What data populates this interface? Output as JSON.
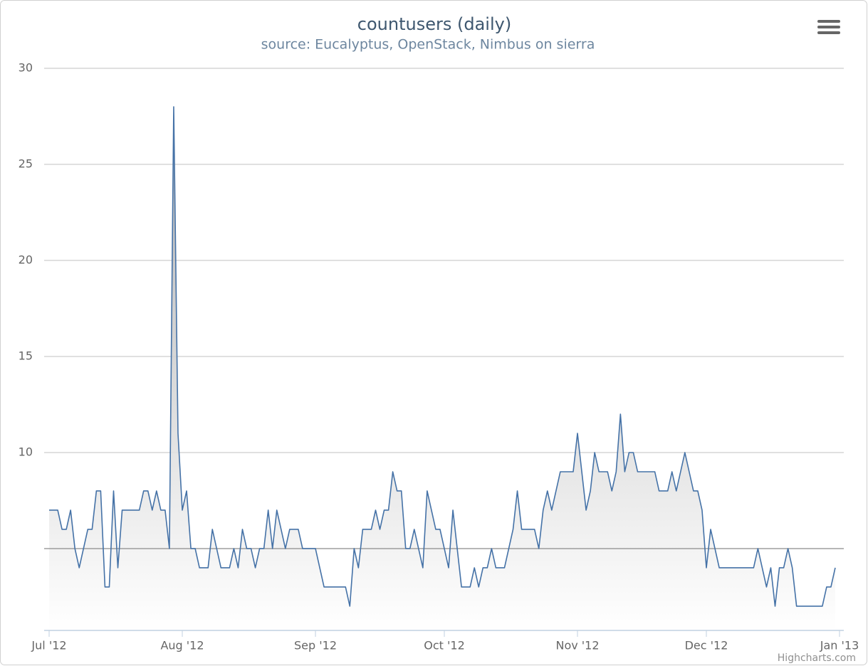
{
  "chart_data": {
    "type": "area",
    "title": "countusers (daily)",
    "subtitle": "source: Eucalyptus, OpenStack, Nimbus on sierra",
    "credits": "Highcharts.com",
    "x": [
      "2012-07-01",
      "2012-07-02",
      "2012-07-03",
      "2012-07-04",
      "2012-07-05",
      "2012-07-06",
      "2012-07-07",
      "2012-07-08",
      "2012-07-09",
      "2012-07-10",
      "2012-07-11",
      "2012-07-12",
      "2012-07-13",
      "2012-07-14",
      "2012-07-15",
      "2012-07-16",
      "2012-07-17",
      "2012-07-18",
      "2012-07-19",
      "2012-07-20",
      "2012-07-21",
      "2012-07-22",
      "2012-07-23",
      "2012-07-24",
      "2012-07-25",
      "2012-07-26",
      "2012-07-27",
      "2012-07-28",
      "2012-07-29",
      "2012-07-30",
      "2012-07-31",
      "2012-08-01",
      "2012-08-02",
      "2012-08-03",
      "2012-08-04",
      "2012-08-05",
      "2012-08-06",
      "2012-08-07",
      "2012-08-08",
      "2012-08-09",
      "2012-08-10",
      "2012-08-11",
      "2012-08-12",
      "2012-08-13",
      "2012-08-14",
      "2012-08-15",
      "2012-08-16",
      "2012-08-17",
      "2012-08-18",
      "2012-08-19",
      "2012-08-20",
      "2012-08-21",
      "2012-08-22",
      "2012-08-23",
      "2012-08-24",
      "2012-08-25",
      "2012-08-26",
      "2012-08-27",
      "2012-08-28",
      "2012-08-29",
      "2012-08-30",
      "2012-08-31",
      "2012-09-01",
      "2012-09-02",
      "2012-09-03",
      "2012-09-04",
      "2012-09-05",
      "2012-09-06",
      "2012-09-07",
      "2012-09-08",
      "2012-09-09",
      "2012-09-10",
      "2012-09-11",
      "2012-09-12",
      "2012-09-13",
      "2012-09-14",
      "2012-09-15",
      "2012-09-16",
      "2012-09-17",
      "2012-09-18",
      "2012-09-19",
      "2012-09-20",
      "2012-09-21",
      "2012-09-22",
      "2012-09-23",
      "2012-09-24",
      "2012-09-25",
      "2012-09-26",
      "2012-09-27",
      "2012-09-28",
      "2012-09-29",
      "2012-09-30",
      "2012-10-01",
      "2012-10-02",
      "2012-10-03",
      "2012-10-04",
      "2012-10-05",
      "2012-10-06",
      "2012-10-07",
      "2012-10-08",
      "2012-10-09",
      "2012-10-10",
      "2012-10-11",
      "2012-10-12",
      "2012-10-13",
      "2012-10-14",
      "2012-10-15",
      "2012-10-16",
      "2012-10-17",
      "2012-10-18",
      "2012-10-19",
      "2012-10-20",
      "2012-10-21",
      "2012-10-22",
      "2012-10-23",
      "2012-10-24",
      "2012-10-25",
      "2012-10-26",
      "2012-10-27",
      "2012-10-28",
      "2012-10-29",
      "2012-10-30",
      "2012-10-31",
      "2012-11-01",
      "2012-11-02",
      "2012-11-03",
      "2012-11-04",
      "2012-11-05",
      "2012-11-06",
      "2012-11-07",
      "2012-11-08",
      "2012-11-09",
      "2012-11-10",
      "2012-11-11",
      "2012-11-12",
      "2012-11-13",
      "2012-11-14",
      "2012-11-15",
      "2012-11-16",
      "2012-11-17",
      "2012-11-18",
      "2012-11-19",
      "2012-11-20",
      "2012-11-21",
      "2012-11-22",
      "2012-11-23",
      "2012-11-24",
      "2012-11-25",
      "2012-11-26",
      "2012-11-27",
      "2012-11-28",
      "2012-11-29",
      "2012-11-30",
      "2012-12-01",
      "2012-12-02",
      "2012-12-03",
      "2012-12-04",
      "2012-12-05",
      "2012-12-06",
      "2012-12-07",
      "2012-12-08",
      "2012-12-09",
      "2012-12-10",
      "2012-12-11",
      "2012-12-12",
      "2012-12-13",
      "2012-12-14",
      "2012-12-15",
      "2012-12-16",
      "2012-12-17",
      "2012-12-18",
      "2012-12-19",
      "2012-12-20",
      "2012-12-21",
      "2012-12-22",
      "2012-12-23",
      "2012-12-24",
      "2012-12-25",
      "2012-12-26",
      "2012-12-27",
      "2012-12-28",
      "2012-12-29",
      "2012-12-30",
      "2012-12-31"
    ],
    "values": [
      7,
      7,
      7,
      6,
      6,
      7,
      5,
      4,
      5,
      6,
      6,
      8,
      8,
      3,
      3,
      8,
      4,
      7,
      7,
      7,
      7,
      7,
      8,
      8,
      7,
      8,
      7,
      7,
      5,
      28,
      11,
      7,
      8,
      5,
      5,
      4,
      4,
      4,
      6,
      5,
      4,
      4,
      4,
      5,
      4,
      6,
      5,
      5,
      4,
      5,
      5,
      7,
      5,
      7,
      6,
      5,
      6,
      6,
      6,
      5,
      5,
      5,
      5,
      4,
      3,
      3,
      3,
      3,
      3,
      3,
      2,
      5,
      4,
      6,
      6,
      6,
      7,
      6,
      7,
      7,
      9,
      8,
      8,
      5,
      5,
      6,
      5,
      4,
      8,
      7,
      6,
      6,
      5,
      4,
      7,
      5,
      3,
      3,
      3,
      4,
      3,
      4,
      4,
      5,
      4,
      4,
      4,
      5,
      6,
      8,
      6,
      6,
      6,
      6,
      5,
      7,
      8,
      7,
      8,
      9,
      9,
      9,
      9,
      11,
      9,
      7,
      8,
      10,
      9,
      9,
      9,
      8,
      9,
      12,
      9,
      10,
      10,
      9,
      9,
      9,
      9,
      9,
      8,
      8,
      8,
      9,
      8,
      9,
      10,
      9,
      8,
      8,
      7,
      4,
      6,
      5,
      4,
      4,
      4,
      4,
      4,
      4,
      4,
      4,
      4,
      5,
      4,
      3,
      4,
      2,
      4,
      4,
      5,
      4,
      2,
      2,
      2,
      2,
      2,
      2,
      2,
      3,
      3,
      4
    ],
    "color": "#4572a7",
    "xlim": [
      "2012-07-01",
      "2013-01-01"
    ],
    "xticks": [
      {
        "value": "2012-07-01",
        "label": "Jul '12"
      },
      {
        "value": "2012-08-01",
        "label": "Aug '12"
      },
      {
        "value": "2012-09-01",
        "label": "Sep '12"
      },
      {
        "value": "2012-10-01",
        "label": "Oct '12"
      },
      {
        "value": "2012-11-01",
        "label": "Nov '12"
      },
      {
        "value": "2012-12-01",
        "label": "Dec '12"
      },
      {
        "value": "2013-01-01",
        "label": "Jan '13"
      }
    ],
    "ylim": [
      0.74,
      30
    ],
    "yticks": [
      10,
      15,
      20,
      25,
      30
    ],
    "plot_line": 5,
    "grid": true
  }
}
